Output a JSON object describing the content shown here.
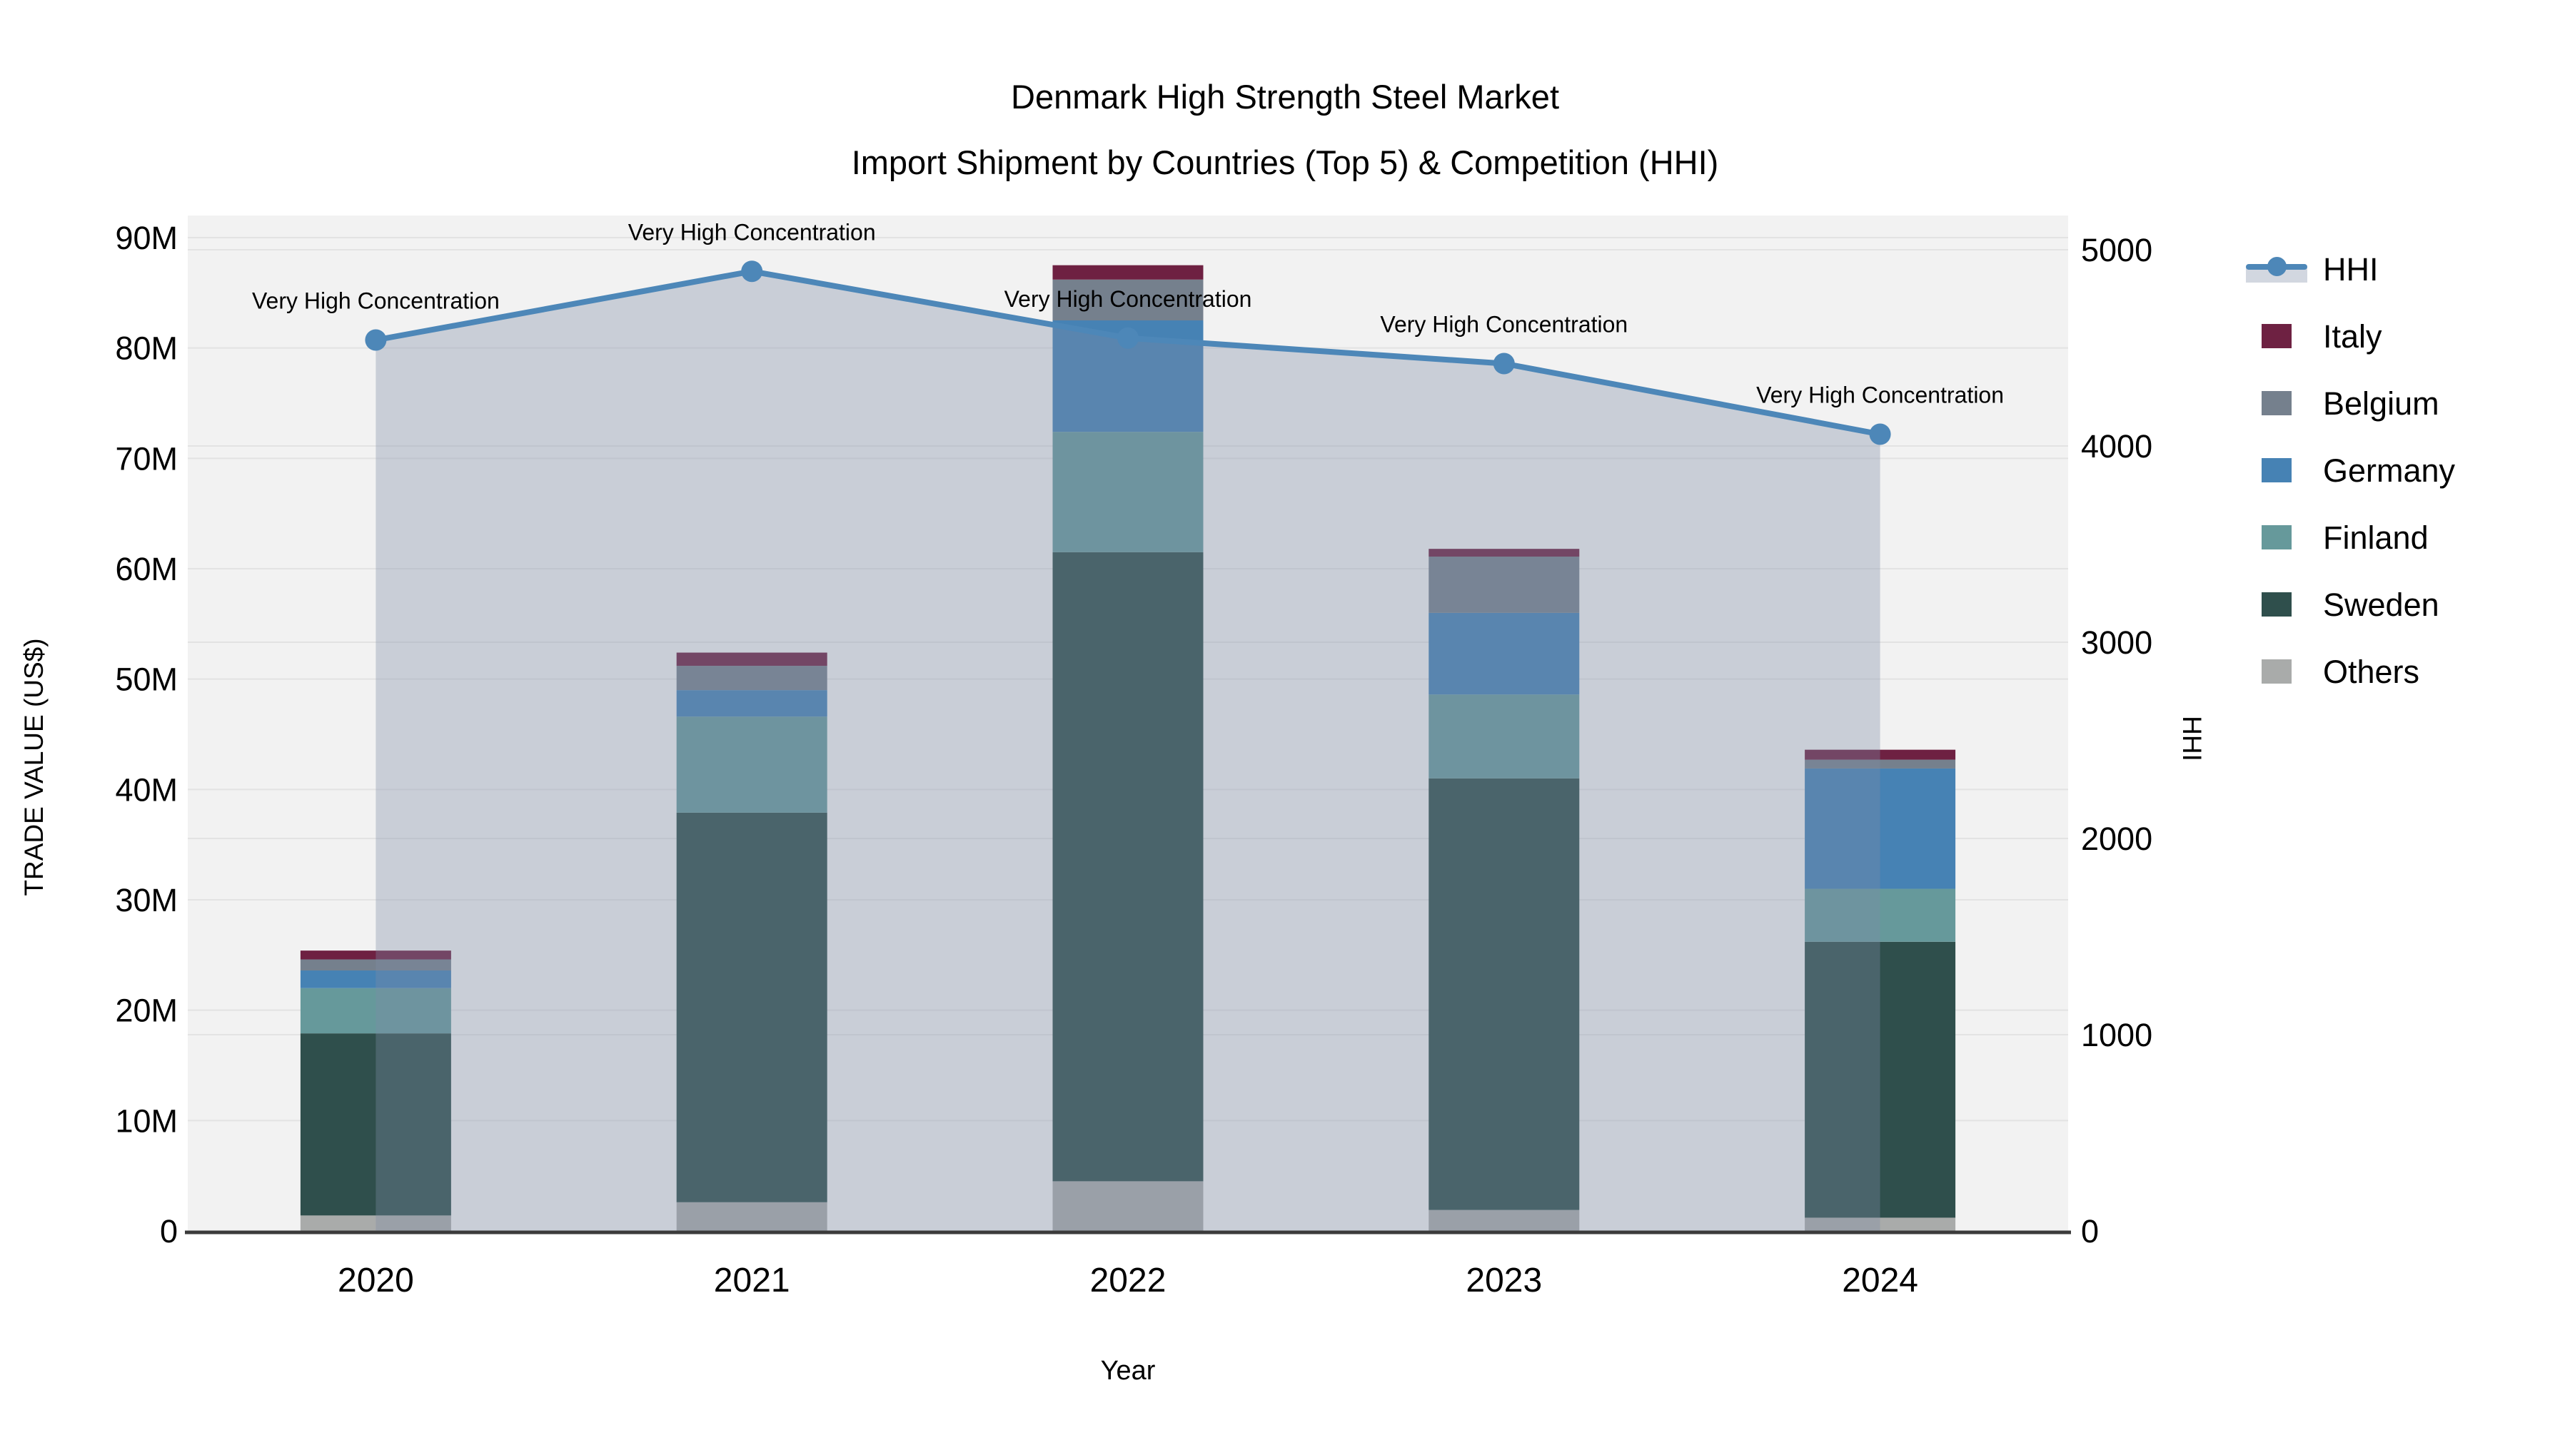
{
  "title": {
    "line1": "Denmark High Strength Steel Market",
    "line2": "Import Shipment by Countries (Top 5) & Competition (HHI)"
  },
  "axes": {
    "y_left": {
      "label": "TRADE VALUE (US$)",
      "unit": "M",
      "ticks": [
        {
          "value": 0,
          "label": "0"
        },
        {
          "value": 10,
          "label": "10M"
        },
        {
          "value": 20,
          "label": "20M"
        },
        {
          "value": 30,
          "label": "30M"
        },
        {
          "value": 40,
          "label": "40M"
        },
        {
          "value": 50,
          "label": "50M"
        },
        {
          "value": 60,
          "label": "60M"
        },
        {
          "value": 70,
          "label": "70M"
        },
        {
          "value": 80,
          "label": "80M"
        },
        {
          "value": 90,
          "label": "90M"
        }
      ]
    },
    "y_right": {
      "label": "HHI",
      "ticks": [
        {
          "value": 0,
          "label": "0"
        },
        {
          "value": 1000,
          "label": "1000"
        },
        {
          "value": 2000,
          "label": "2000"
        },
        {
          "value": 3000,
          "label": "3000"
        },
        {
          "value": 4000,
          "label": "4000"
        },
        {
          "value": 5000,
          "label": "5000"
        }
      ]
    },
    "x": {
      "label": "Year"
    }
  },
  "legend": [
    {
      "name": "HHI",
      "type": "line",
      "color": "#4d87b8"
    },
    {
      "name": "Italy",
      "type": "box",
      "color": "#6e2142"
    },
    {
      "name": "Belgium",
      "type": "box",
      "color": "#75808d"
    },
    {
      "name": "Germany",
      "type": "box",
      "color": "#4682b4"
    },
    {
      "name": "Finland",
      "type": "box",
      "color": "#66999b"
    },
    {
      "name": "Sweden",
      "type": "box",
      "color": "#2f4f4c"
    },
    {
      "name": "Others",
      "type": "box",
      "color": "#a9abaa"
    }
  ],
  "annotation_text": "Very High Concentration",
  "colors": {
    "hhi_line": "#4d87b8",
    "hhi_fill": "rgba(125,140,165,0.35)",
    "plot_bg": "#f2f2f2",
    "gridline": "#e3e3e3",
    "axis_line": "#3b3b3b"
  },
  "chart_data": {
    "type": "combo",
    "subtype": "stacked-bar + line + area",
    "categories": [
      "2020",
      "2021",
      "2022",
      "2023",
      "2024"
    ],
    "bar_unit": "million US$",
    "bar_stack_order_bottom_to_top": [
      "Others",
      "Sweden",
      "Finland",
      "Germany",
      "Belgium",
      "Italy"
    ],
    "series": [
      {
        "name": "Others",
        "axis": "left",
        "color": "#a9abaa",
        "values": [
          1.4,
          2.6,
          4.5,
          1.9,
          1.2
        ]
      },
      {
        "name": "Sweden",
        "axis": "left",
        "color": "#2f4f4c",
        "values": [
          16.5,
          35.3,
          57.0,
          39.1,
          25.0
        ]
      },
      {
        "name": "Finland",
        "axis": "left",
        "color": "#66999b",
        "values": [
          4.1,
          8.7,
          10.9,
          7.6,
          4.8
        ]
      },
      {
        "name": "Germany",
        "axis": "left",
        "color": "#4682b4",
        "values": [
          1.6,
          2.4,
          10.1,
          7.4,
          10.9
        ]
      },
      {
        "name": "Belgium",
        "axis": "left",
        "color": "#75808d",
        "values": [
          1.0,
          2.2,
          3.7,
          5.1,
          0.8
        ]
      },
      {
        "name": "Italy",
        "axis": "left",
        "color": "#6e2142",
        "values": [
          0.8,
          1.2,
          1.3,
          0.7,
          0.9
        ]
      }
    ],
    "bar_totals": [
      25.3,
      52.4,
      87.5,
      61.8,
      43.6
    ],
    "line_series": {
      "name": "HHI",
      "axis": "right",
      "color": "#4d87b8",
      "values": [
        4540,
        4890,
        4550,
        4420,
        4060
      ],
      "point_annotations": [
        "Very High Concentration",
        "Very High Concentration",
        "Very High Concentration",
        "Very High Concentration",
        "Very High Concentration"
      ]
    },
    "title": "Denmark High Strength Steel Market — Import Shipment by Countries (Top 5) & Competition (HHI)",
    "xlabel": "Year",
    "ylabel_left": "TRADE VALUE (US$)",
    "ylabel_right": "HHI",
    "ylim_left_millions": [
      0,
      90
    ],
    "ylim_right": [
      0,
      5000
    ],
    "grid": true,
    "legend_position": "right"
  }
}
